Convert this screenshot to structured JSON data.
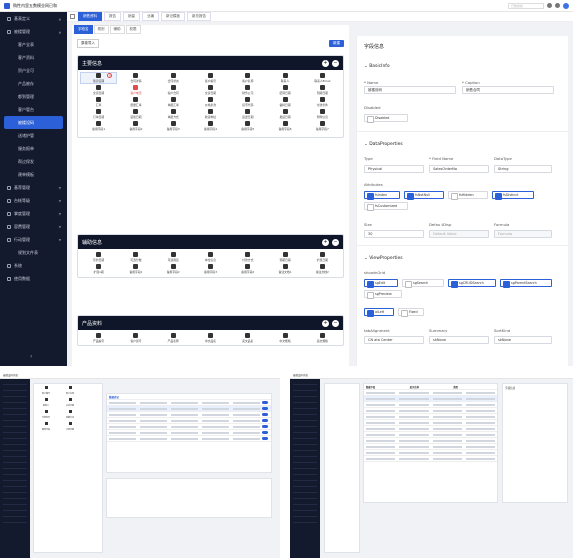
{
  "app": {
    "title": "购性内里五数模业网已和"
  },
  "topbar": {
    "search_placeholder": "已数模检"
  },
  "sidebar": {
    "items": [
      {
        "label": "基表定义",
        "level": 1,
        "caret": "▲"
      },
      {
        "label": "被楼管理",
        "level": 1,
        "caret": "▲"
      },
      {
        "label": "客产全表",
        "level": 2
      },
      {
        "label": "客产资料",
        "level": 2
      },
      {
        "label": "贸户全可",
        "level": 2
      },
      {
        "label": "产品被存",
        "level": 2
      },
      {
        "label": "都到管理",
        "level": 2
      },
      {
        "label": "客户管台",
        "level": 2
      },
      {
        "label": "被楼设码",
        "level": 2,
        "active": true
      },
      {
        "label": "送诸护管",
        "level": 2
      },
      {
        "label": "服务报单",
        "level": 2
      },
      {
        "label": "帮过保发",
        "level": 2
      },
      {
        "label": "建单模板",
        "level": 2
      },
      {
        "label": "基荐管理",
        "level": 1,
        "caret": "▼"
      },
      {
        "label": "台帐等级",
        "level": 1,
        "caret": "▼"
      },
      {
        "label": "掌度管理",
        "level": 1,
        "caret": "▼"
      },
      {
        "label": "容费管理",
        "level": 1,
        "caret": "▼"
      },
      {
        "label": "行动管理",
        "level": 1,
        "caret": "▼"
      },
      {
        "label": "规划文件表",
        "level": 2
      },
      {
        "label": "系统",
        "level": 1
      },
      {
        "label": "使用数据",
        "level": 1
      }
    ],
    "collapse": "‹"
  },
  "tabs": [
    {
      "label": "销售资料",
      "active": true
    },
    {
      "label": "报告"
    },
    {
      "label": "销量"
    },
    {
      "label": "业编"
    },
    {
      "label": "新记模板"
    },
    {
      "label": "新总报告"
    }
  ],
  "main": {
    "subtabs": [
      {
        "label": "字段名",
        "active": true
      },
      {
        "label": "规则"
      },
      {
        "label": "辅助"
      },
      {
        "label": "权限"
      }
    ],
    "import_label": "原卷导入",
    "add_label": "新建",
    "sections": [
      {
        "title": "主要信息",
        "items": [
          "随意任理",
          "合同详情",
          "合同状态",
          "客户编号",
          "客户名称",
          "联系人",
          "联系人Email",
          "交货日期",
          "客户电话",
          "客户合同",
          "交货日期",
          "财务公司",
          "结算日期",
          "到期日期",
          "汇率",
          "质量汇率",
          "单据汇率",
          "价格条款",
          "货币代码",
          "备料日期",
          "付款条件",
          "订单日期",
          "装船日期",
          "单据方式",
          "收货地址",
          "运送日期",
          "发运日期",
          "附件信息",
          "备用字段1",
          "备用字段2",
          "备用字段3",
          "备用字段4",
          "备用字段5",
          "备用字段6",
          "备用字段7"
        ],
        "selected_index": 0,
        "red_index": 8
      },
      {
        "title": "辅助信息",
        "items": [
          "签约日期",
          "可选分数",
          "可选用途",
          "单位信息",
          "付款方式",
          "预期日期",
          "扩展日期",
          "扩展1期",
          "备用字段1",
          "备用字段2",
          "备用字段3",
          "备用字段4",
          "备注文档1",
          "备注文档2"
        ]
      },
      {
        "title": "产品资料",
        "items": [
          "产品编号",
          "客户货号",
          "产品名称",
          "中文品名",
          "英文品名",
          "中文规格",
          "英文规格"
        ]
      }
    ]
  },
  "props": {
    "title": "字段信息",
    "basic": {
      "title": "BasicInfo",
      "name_label": "* Name",
      "name_value": "被楼设码",
      "caption_label": "* Caption",
      "caption_value": "销售合同",
      "disabled_label": "Disabled",
      "disabled_text": "Disabled"
    },
    "data": {
      "title": "DataProperties",
      "type_label": "Type",
      "type_value": "Physical",
      "field_label": "* Field Name",
      "field_value": "SalesOrderNo",
      "dtype_label": "DataType",
      "dtype_value": "String",
      "attr_label": "Attributes",
      "attrs": [
        {
          "label": "fsIndex",
          "on": true
        },
        {
          "label": "fsNotNull",
          "on": true
        },
        {
          "label": "fsHidden",
          "on": false
        },
        {
          "label": "fsDistinct",
          "on": true
        },
        {
          "label": "fsCustomized",
          "on": false
        }
      ],
      "size_label": "Size",
      "size_value": "30",
      "default_label": "Defau tDisp",
      "default_placeholder": "Default Value",
      "formula_label": "Formula",
      "formula_placeholder": "Formula"
    },
    "view": {
      "title": "ViewProperties",
      "grid_label": "showInGrid",
      "grids": [
        {
          "label": "sgEdit",
          "on": true
        },
        {
          "label": "sgSearch",
          "on": false
        },
        {
          "label": "sgCRUDSearch",
          "on": true
        },
        {
          "label": "sgParentSearch",
          "on": true
        },
        {
          "label": "sgPreview",
          "on": false
        }
      ],
      "align_options": [
        {
          "label": "alLeft",
          "on": true
        },
        {
          "label": "Fixed",
          "on": false
        }
      ],
      "align_label": "tabAlignment",
      "summary_label": "Summary",
      "sort_label": "SortKind",
      "align_value": "CN ata Center",
      "summary_value": "skNone",
      "sort_value": "skNone"
    }
  },
  "shot2": {
    "title": "被楼设码系统",
    "panel_title": "数据表记",
    "cells": [
      "客户编号",
      "客户名称",
      "联系人",
      "交货日期",
      "付款条件",
      "单据方式",
      "备用字段",
      "订单日期"
    ]
  },
  "shot3": {
    "title": "被楼设码系统",
    "panel_title": "字段信息",
    "col1": "数据字段",
    "col2": "显示名称",
    "col3": "类型"
  },
  "colors": {
    "accent": "#2c60d8",
    "sidebar": "#141a2e",
    "section_head": "#0f1629",
    "warn": "#e34c4c"
  }
}
